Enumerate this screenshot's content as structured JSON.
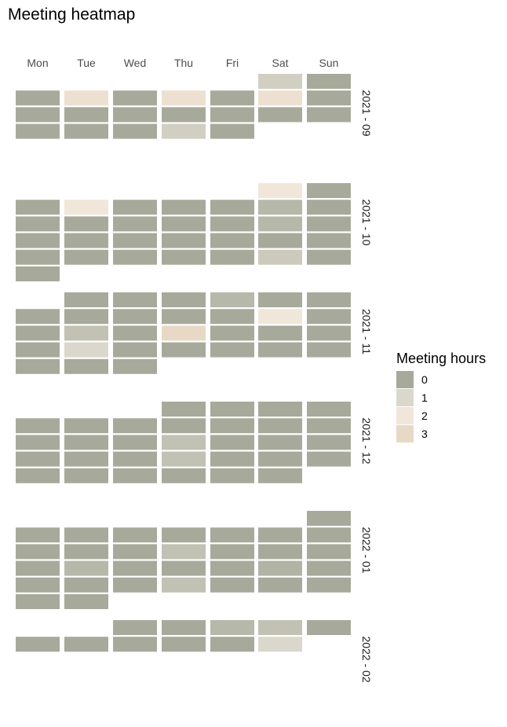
{
  "chart_data": {
    "type": "heatmap",
    "title": "Meeting heatmap",
    "days": [
      "Mon",
      "Tue",
      "Wed",
      "Thu",
      "Fri",
      "Sat",
      "Sun"
    ],
    "legend": {
      "title": "Meeting hours",
      "position": "right",
      "items": [
        {
          "label": "0",
          "color": "#a7aa9b"
        },
        {
          "label": "1",
          "color": "#dad8cc"
        },
        {
          "label": "2",
          "color": "#f1e6da"
        },
        {
          "label": "3",
          "color": "#e8d9c6"
        }
      ]
    },
    "months": [
      {
        "label": "2021 - 09",
        "weeks": [
          [
            null,
            null,
            null,
            null,
            null,
            0.8,
            0
          ],
          [
            0,
            2.5,
            0,
            2.5,
            0,
            2.5,
            0
          ],
          [
            0,
            0,
            0,
            0,
            0,
            0,
            0
          ],
          [
            0,
            0,
            0,
            0.8,
            0
          ]
        ]
      },
      {
        "label": "2021 - 10",
        "weeks": [
          [
            null,
            null,
            null,
            null,
            null,
            2,
            0
          ],
          [
            0,
            2,
            0,
            0,
            0,
            0.3,
            0
          ],
          [
            0,
            0,
            0,
            0,
            0,
            0.3,
            0
          ],
          [
            0,
            0,
            0,
            0,
            0,
            0,
            0
          ],
          [
            0,
            0,
            0,
            0,
            0,
            0.7,
            0
          ],
          [
            0
          ]
        ]
      },
      {
        "label": "2021 - 11",
        "weeks": [
          [
            null,
            0,
            0,
            0,
            0.3,
            0,
            0
          ],
          [
            0,
            0,
            0,
            0,
            0,
            2,
            0
          ],
          [
            0,
            0.5,
            0,
            3,
            0,
            0,
            0
          ],
          [
            0,
            1,
            0,
            0,
            0,
            0,
            0
          ],
          [
            0,
            0,
            0
          ]
        ]
      },
      {
        "label": "2021 - 12",
        "weeks": [
          [
            null,
            null,
            null,
            0,
            0,
            0,
            0
          ],
          [
            0,
            0,
            0,
            0,
            0,
            0,
            0
          ],
          [
            0,
            0,
            0,
            0.5,
            0,
            0,
            0
          ],
          [
            0,
            0,
            0,
            0.5,
            0,
            0,
            0
          ],
          [
            0,
            0,
            0,
            0,
            0,
            0
          ]
        ]
      },
      {
        "label": "2022 - 01",
        "weeks": [
          [
            null,
            null,
            null,
            null,
            null,
            null,
            0
          ],
          [
            0,
            0,
            0,
            0,
            0,
            0,
            0
          ],
          [
            0,
            0,
            0,
            0.5,
            0,
            0,
            0
          ],
          [
            0,
            0.3,
            0,
            0,
            0,
            0.2,
            0
          ],
          [
            0,
            0,
            0,
            0.5,
            0,
            0,
            0
          ],
          [
            0,
            0
          ]
        ]
      },
      {
        "label": "2022 - 02",
        "weeks": [
          [
            null,
            null,
            0,
            0,
            0.3,
            0.5,
            0
          ],
          [
            0,
            0,
            0,
            0,
            0,
            1
          ]
        ]
      }
    ]
  }
}
